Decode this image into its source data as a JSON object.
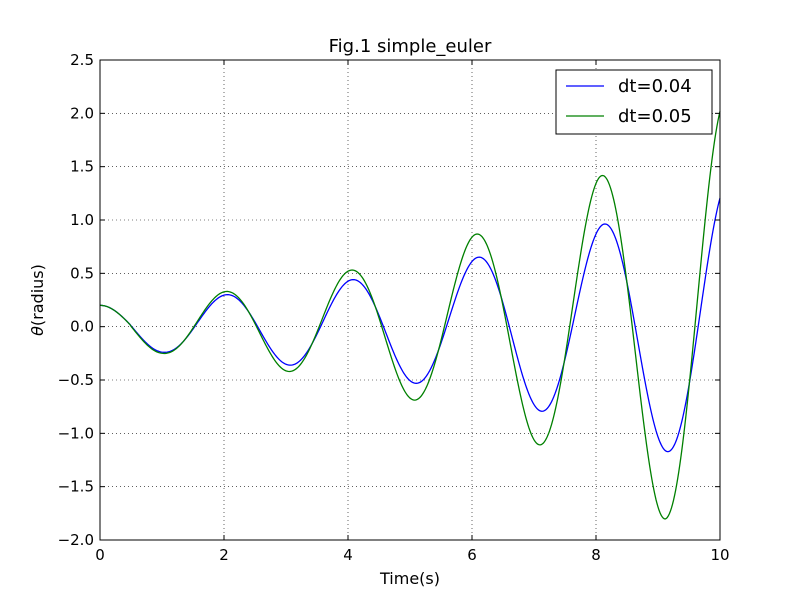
{
  "chart_data": {
    "type": "line",
    "title": "Fig.1 simple_euler",
    "xlabel": "Time(s)",
    "ylabel_symbol": "θ",
    "ylabel_text": "(radius)",
    "xlim": [
      0,
      10
    ],
    "ylim": [
      -2.0,
      2.5
    ],
    "x_ticks": [
      0,
      2,
      4,
      6,
      8,
      10
    ],
    "x_tick_labels": [
      "0",
      "2",
      "4",
      "6",
      "8",
      "10"
    ],
    "y_ticks": [
      -2.0,
      -1.5,
      -1.0,
      -0.5,
      0.0,
      0.5,
      1.0,
      1.5,
      2.0,
      2.5
    ],
    "y_tick_labels": [
      "−2.0",
      "−1.5",
      "−1.0",
      "−0.5",
      "0.0",
      "0.5",
      "1.0",
      "1.5",
      "2.0",
      "2.5"
    ],
    "grid": true,
    "legend_position": "top-right",
    "series": [
      {
        "name": "dt=0.04",
        "color": "#0000ff",
        "period": 2.03,
        "points": [
          [
            0,
            0.2
          ],
          [
            0.5,
            0.08
          ],
          [
            1.02,
            -0.24
          ],
          [
            1.5,
            -0.05
          ],
          [
            2.04,
            0.3
          ],
          [
            2.5,
            0.05
          ],
          [
            3.05,
            -0.36
          ],
          [
            3.5,
            -0.05
          ],
          [
            4.06,
            0.44
          ],
          [
            4.5,
            0.05
          ],
          [
            5.08,
            -0.53
          ],
          [
            5.5,
            -0.05
          ],
          [
            6.09,
            0.65
          ],
          [
            6.5,
            0.05
          ],
          [
            7.1,
            -0.79
          ],
          [
            7.5,
            -0.05
          ],
          [
            8.12,
            0.96
          ],
          [
            8.5,
            0.05
          ],
          [
            9.14,
            -1.17
          ],
          [
            9.5,
            -0.05
          ],
          [
            10.0,
            1.36
          ]
        ]
      },
      {
        "name": "dt=0.05",
        "color": "#008000",
        "period": 2.02,
        "points": [
          [
            0,
            0.2
          ],
          [
            0.5,
            0.08
          ],
          [
            1.01,
            -0.25
          ],
          [
            1.5,
            -0.05
          ],
          [
            2.03,
            0.33
          ],
          [
            2.5,
            0.05
          ],
          [
            3.04,
            -0.42
          ],
          [
            3.5,
            -0.05
          ],
          [
            4.05,
            0.53
          ],
          [
            4.5,
            0.05
          ],
          [
            5.07,
            -0.69
          ],
          [
            5.5,
            -0.05
          ],
          [
            6.08,
            0.87
          ],
          [
            6.5,
            0.05
          ],
          [
            7.09,
            -1.11
          ],
          [
            7.5,
            -0.05
          ],
          [
            8.1,
            1.42
          ],
          [
            8.5,
            0.05
          ],
          [
            9.12,
            -1.81
          ],
          [
            9.5,
            -0.05
          ],
          [
            10.0,
            2.12
          ]
        ]
      }
    ]
  }
}
